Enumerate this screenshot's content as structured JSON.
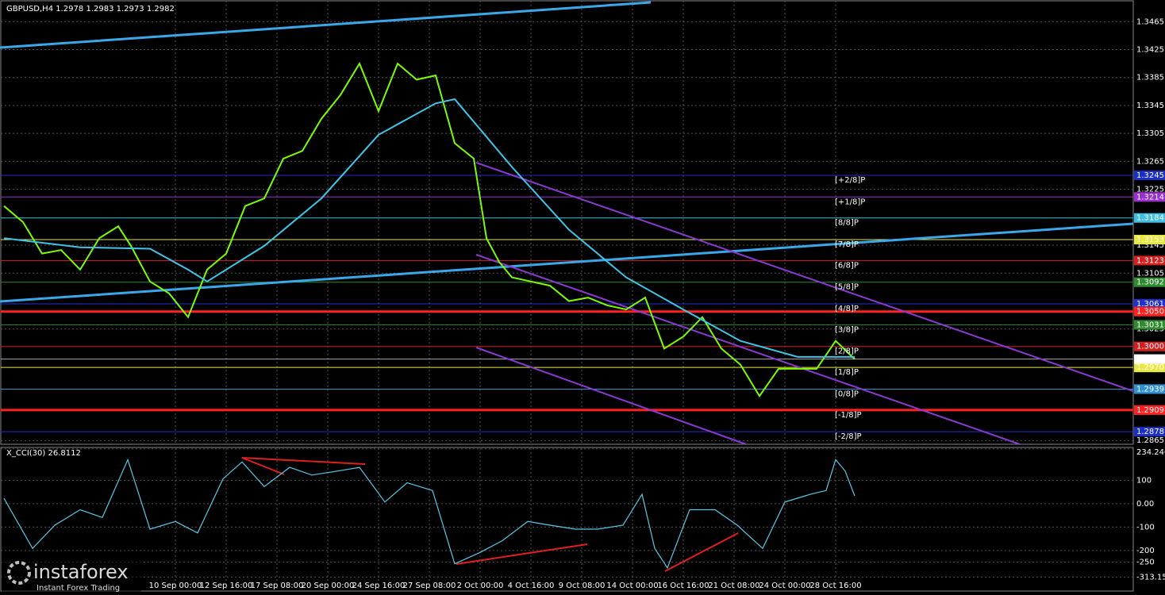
{
  "chart_data": [
    {
      "type": "line",
      "title": "GBPUSD,H4",
      "ohlc": [
        1.2978,
        1.2983,
        1.2973,
        1.2982
      ],
      "xlim": [
        0,
        356
      ],
      "ylim": [
        1.286,
        1.3496
      ],
      "yticks": [
        1.3465,
        1.3425,
        1.3385,
        1.3345,
        1.3305,
        1.3265,
        1.3225,
        1.3145,
        1.3105,
        1.3025,
        1.2865
      ],
      "grid": true,
      "series": [
        {
          "color": "#7cfc00",
          "x": [
            0,
            6,
            12,
            18,
            24,
            30,
            36,
            40,
            46,
            52,
            58,
            64,
            70,
            76,
            82,
            88,
            94,
            100,
            106,
            112,
            118,
            124,
            130,
            136,
            142,
            148,
            152,
            156,
            160,
            166,
            172,
            178,
            184,
            190,
            196,
            202,
            208,
            214,
            220,
            226,
            232,
            238,
            244,
            250,
            256,
            262,
            268
          ],
          "values": [
            1.3201,
            1.3178,
            1.3133,
            1.3138,
            1.311,
            1.3155,
            1.3172,
            1.3144,
            1.3093,
            1.3076,
            1.3042,
            1.311,
            1.3133,
            1.3201,
            1.3212,
            1.3269,
            1.328,
            1.3326,
            1.336,
            1.3405,
            1.3337,
            1.3405,
            1.3382,
            1.3388,
            1.3291,
            1.3269,
            1.3155,
            1.3121,
            1.3099,
            1.3093,
            1.3087,
            1.3065,
            1.307,
            1.3059,
            1.3053,
            1.307,
            1.2997,
            1.3014,
            1.3042,
            1.2997,
            1.2974,
            1.2929,
            1.2968,
            1.2968,
            1.2968,
            1.3008,
            1.2982
          ]
        },
        {
          "color": "#40c4e8",
          "x": [
            0,
            24,
            46,
            58,
            64,
            82,
            100,
            118,
            136,
            142,
            160,
            178,
            196,
            214,
            232,
            250,
            268
          ],
          "values": [
            1.3155,
            1.3142,
            1.314,
            1.311,
            1.3093,
            1.3144,
            1.3212,
            1.3303,
            1.3348,
            1.3354,
            1.3257,
            1.3167,
            1.3099,
            1.3053,
            1.3008,
            1.2985,
            1.2985
          ]
        }
      ],
      "levels": [
        {
          "label": "[+2/8]P",
          "price": 1.3245,
          "color": "#1c2fc4"
        },
        {
          "label": "[+1/8]P",
          "price": 1.3214,
          "color": "#9932cc"
        },
        {
          "label": "[8/8]P",
          "price": 1.3184,
          "color": "#40c0e0"
        },
        {
          "label": "[7/8]P",
          "price": 1.3153,
          "color": "#e8e840"
        },
        {
          "label": "[6/8]P",
          "price": 1.3123,
          "color": "#d02020"
        },
        {
          "label": "[5/8]P",
          "price": 1.3092,
          "color": "#2e8b2e"
        },
        {
          "label": "[4/8]P",
          "price": 1.3061,
          "color": "#2030d0"
        },
        {
          "label": "[3/8]P",
          "price": 1.3031,
          "color": "#2e8b2e"
        },
        {
          "label": "[2/8]P",
          "price": {
            "value": 1.3,
            "label": "1.3000"
          },
          "color": "#d02020"
        },
        {
          "label": "[1/8]P",
          "price": {
            "value": 1.297,
            "label": "1.2970"
          },
          "color": "#e8e840"
        },
        {
          "label": "[0/8]P",
          "price": 1.2939,
          "color": "#3090d0"
        },
        {
          "label": "[-1/8]P",
          "price": 1.2909,
          "color": "#9932cc"
        },
        {
          "label": "[-2/8]P",
          "price": 1.2878,
          "color": "#1c2fc4"
        }
      ],
      "hlines": [
        {
          "value": 1.305,
          "label": "1.3050"
        },
        1.2909
      ],
      "hline_color": "#ff2020",
      "last_price": 1.2982
    },
    {
      "type": "line",
      "title": "X_CCI(30) 26.8112",
      "xlim": [
        0,
        356
      ],
      "ylim": [
        -373,
        240
      ],
      "yticks": [
        234.2406,
        100,
        {
          "value": 0,
          "label": "0.00"
        },
        -100,
        -200,
        -250,
        -313.1513
      ],
      "xticks": [
        {
          "value": 54,
          "label": "10 Sep 00:00"
        },
        {
          "value": 70,
          "label": "12 Sep 16:00"
        },
        {
          "value": 86,
          "label": "17 Sep 08:00"
        },
        {
          "value": 102,
          "label": "20 Sep 00:00"
        },
        {
          "value": 118,
          "label": "24 Sep 16:00"
        },
        {
          "value": 134,
          "label": "27 Sep 08:00"
        },
        {
          "value": 150,
          "label": "2 Oct 00:00"
        },
        {
          "value": 166,
          "label": "4 Oct 16:00"
        },
        {
          "value": 182,
          "label": "9 Oct 08:00"
        },
        {
          "value": 198,
          "label": "14 Oct 00:00"
        },
        {
          "value": 214,
          "label": "16 Oct 16:00"
        },
        {
          "value": 230,
          "label": "21 Oct 08:00"
        },
        {
          "value": 246,
          "label": "24 Oct 00:00"
        },
        {
          "value": 262,
          "label": "28 Oct 16:00"
        }
      ],
      "series": [
        {
          "color": "#5bc8e8",
          "x": [
            0,
            9,
            16,
            24,
            31,
            39,
            46,
            54,
            61,
            69,
            75,
            82,
            90,
            97,
            105,
            112,
            120,
            127,
            135,
            142,
            150,
            157,
            165,
            172,
            180,
            187,
            195,
            201,
            205,
            209,
            216,
            224,
            231,
            239,
            246,
            254,
            259,
            262,
            265,
            268
          ],
          "values": [
            23,
            -191,
            -92,
            -26,
            -59,
            188,
            -109,
            -76,
            -125,
            106,
            178,
            73,
            155,
            122,
            139,
            155,
            7,
            89,
            56,
            -257,
            -208,
            -158,
            -76,
            -92,
            -109,
            -109,
            -92,
            40,
            -191,
            -274,
            -26,
            -26,
            -92,
            -191,
            7,
            40,
            56,
            188,
            139,
            33
          ]
        }
      ]
    }
  ],
  "watermark": {
    "brand": "instaforex",
    "tagline": "Instant Forex Trading"
  }
}
